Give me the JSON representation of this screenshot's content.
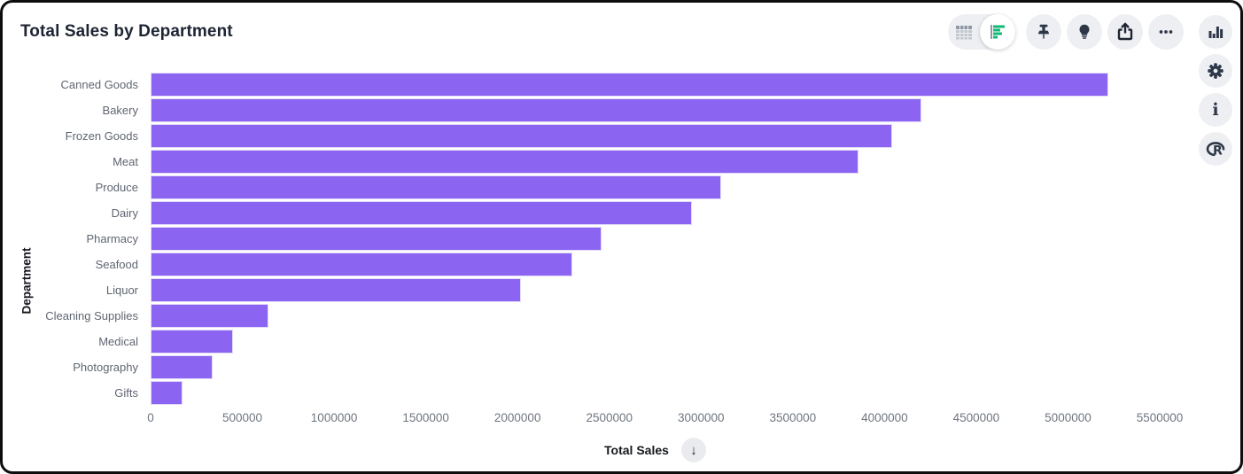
{
  "window": {
    "title": "Total Sales by Department"
  },
  "toolbar": {
    "view_toggle": {
      "options": [
        {
          "icon": "table-view-icon",
          "selected": false
        },
        {
          "icon": "bar-chart-view-icon",
          "selected": true
        }
      ]
    },
    "buttons": [
      {
        "icon": "pin-icon"
      },
      {
        "icon": "lightbulb-icon"
      },
      {
        "icon": "share-icon"
      },
      {
        "icon": "ellipsis-icon"
      }
    ]
  },
  "right_rail": {
    "buttons": [
      {
        "icon": "column-chart-icon"
      },
      {
        "icon": "gear-icon"
      },
      {
        "icon": "info-icon",
        "glyph": "i"
      },
      {
        "icon": "r-logo-icon",
        "glyph": "R"
      }
    ]
  },
  "colors": {
    "bar": "#8b64f2",
    "toggle_active_green": "#13b877",
    "icon_dark": "#2d3748",
    "icon_gray": "#9aa3ad",
    "circle_bg": "#edeff2",
    "title_text": "#1d2433",
    "category_text": "#5f6671",
    "tick_text": "#6f7680"
  },
  "sort_button": {
    "icon": "arrow-down-icon",
    "glyph": "↓"
  },
  "chart_data": {
    "type": "bar",
    "orientation": "horizontal",
    "title": "Total Sales by Department",
    "xlabel": "Total Sales",
    "ylabel": "Department",
    "categories": [
      "Canned Goods",
      "Bakery",
      "Frozen Goods",
      "Meat",
      "Produce",
      "Dairy",
      "Pharmacy",
      "Seafood",
      "Liquor",
      "Cleaning Supplies",
      "Medical",
      "Photography",
      "Gifts"
    ],
    "values": [
      5220000,
      4200000,
      4040000,
      3860000,
      3110000,
      2950000,
      2460000,
      2300000,
      2020000,
      640000,
      450000,
      340000,
      175000
    ],
    "xlim": [
      0,
      5500000
    ],
    "x_ticks": [
      0,
      500000,
      1000000,
      1500000,
      2000000,
      2500000,
      3000000,
      3500000,
      4000000,
      4500000,
      5000000,
      5500000
    ],
    "sort": "descending",
    "grid": false,
    "legend": false,
    "bar_color": "#8b64f2"
  }
}
